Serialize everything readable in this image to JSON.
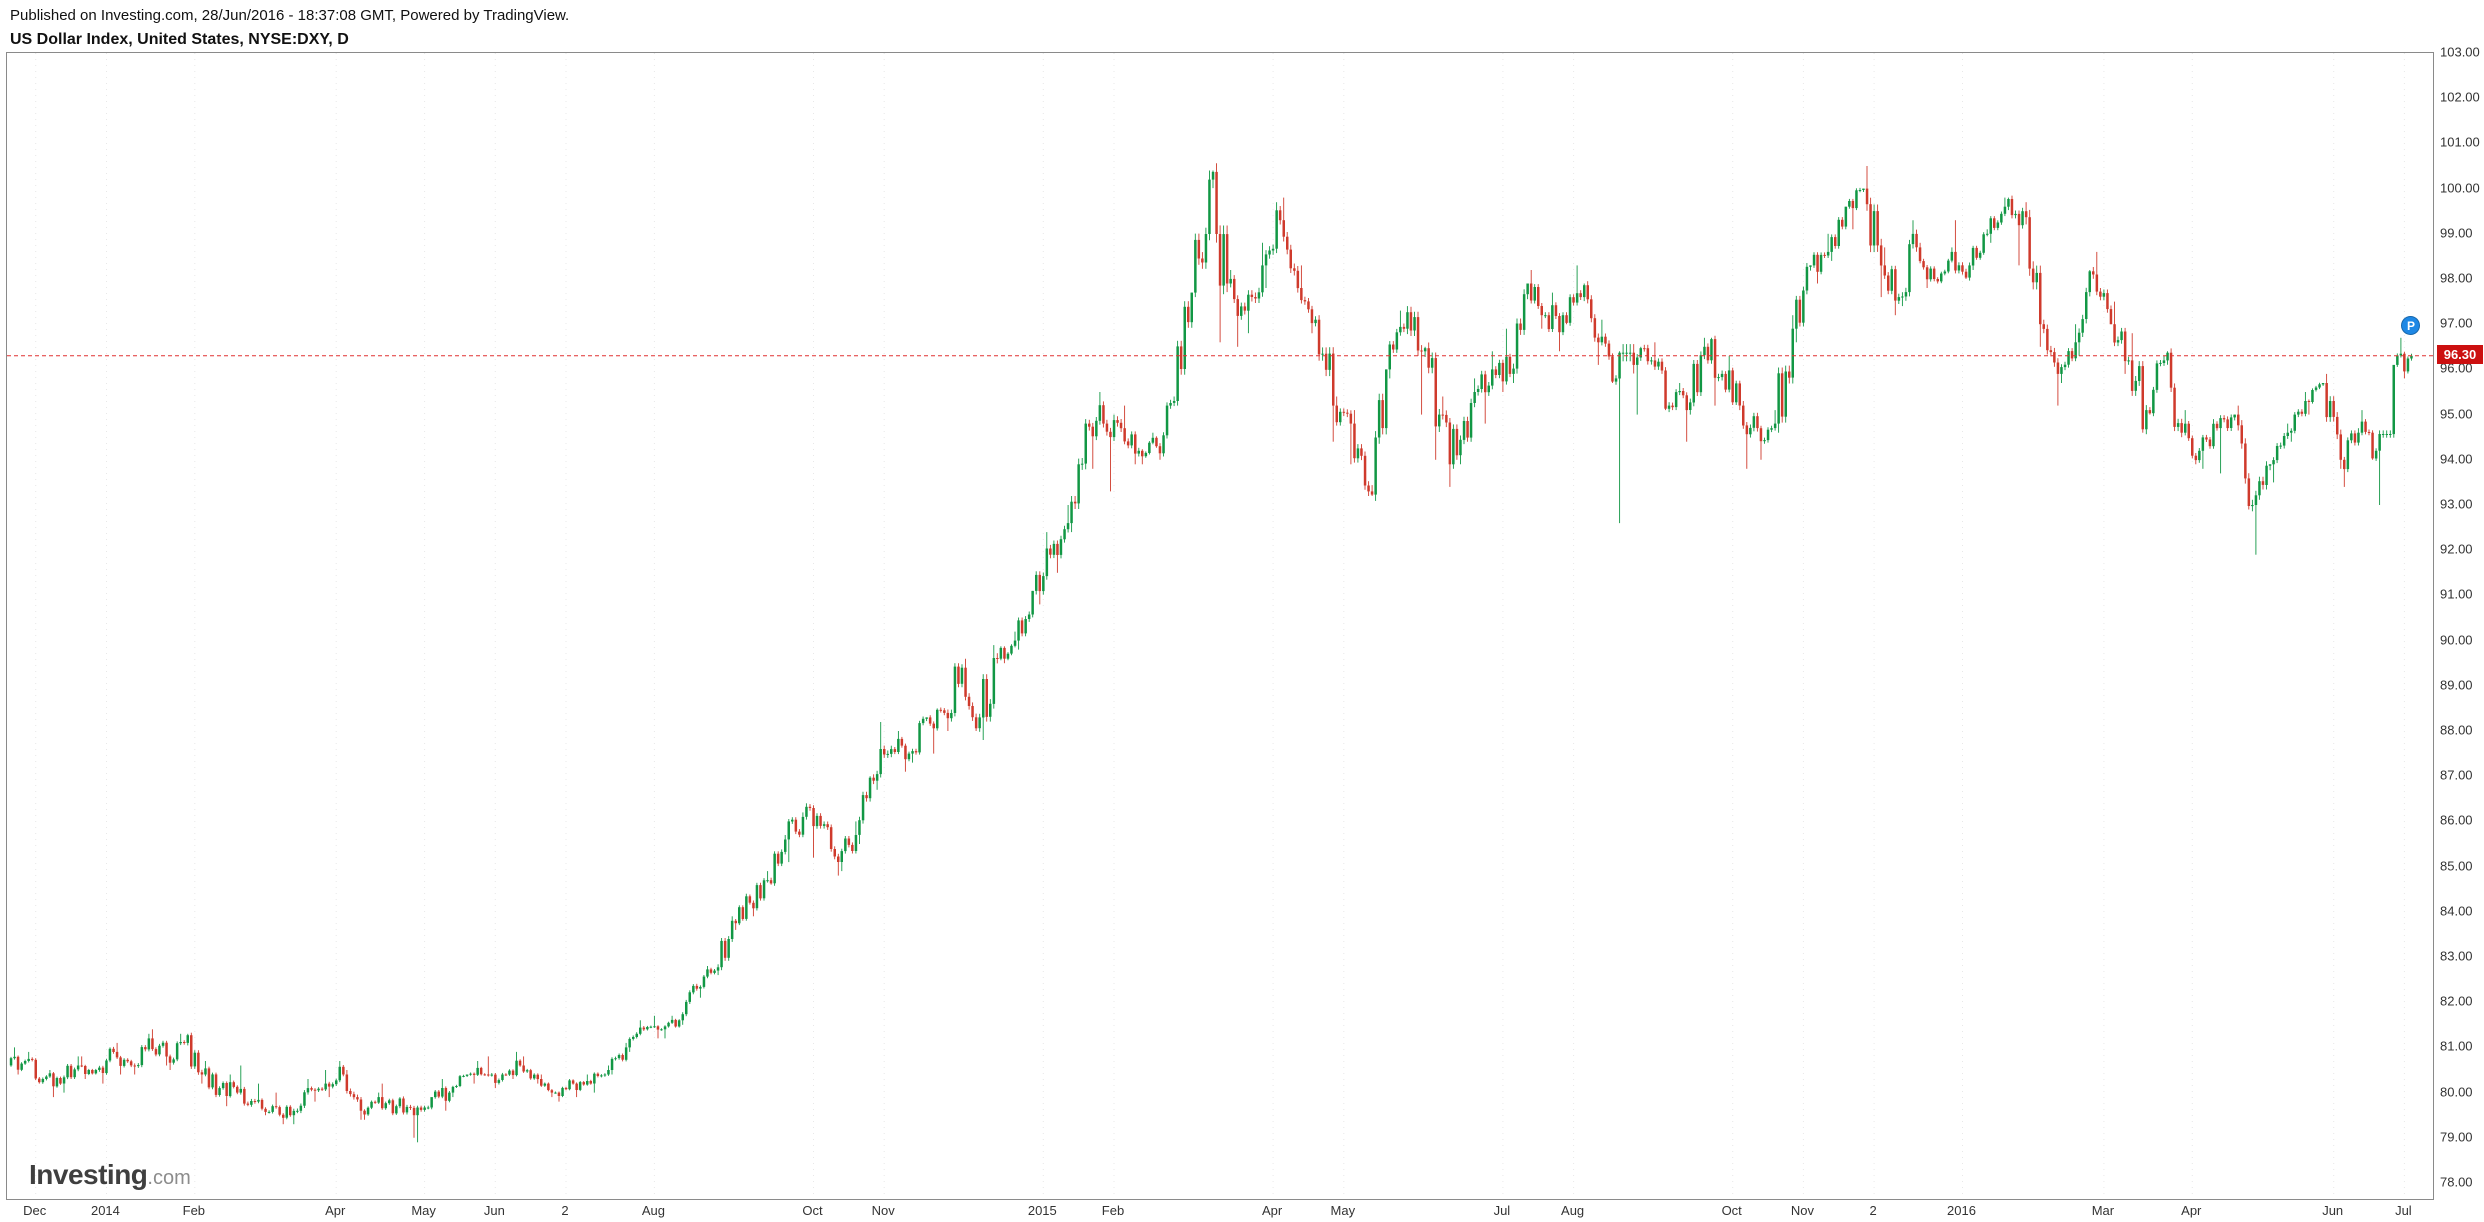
{
  "header": {
    "published_line": "Published on Investing.com, 28/Jun/2016 - 18:37:08 GMT, Powered by TradingView.",
    "instrument_line": "US Dollar Index, United States, NYSE:DXY, D"
  },
  "watermark": {
    "brand": "Investing",
    "suffix": ".com"
  },
  "price_marker": {
    "label": "96.30",
    "value": 96.3,
    "color": "#cc1010"
  },
  "publisher_marker": {
    "label": "P",
    "value": 96.95,
    "color": "#1e88e5"
  },
  "chart_data": {
    "type": "candlestick",
    "title": "US Dollar Index, United States, NYSE:DXY, D",
    "last_price": 96.3,
    "days_per_bar": 5,
    "colors": {
      "up": "#119744",
      "down": "#cf3a2c",
      "grid": "#e8e8e8",
      "price_line": "#e03030",
      "axis_text": "#333333",
      "frame": "#8a8a8a"
    },
    "y_axis": {
      "min": 78,
      "max": 103,
      "tick_step": 1,
      "tick_labels": [
        "103.00",
        "102.00",
        "101.00",
        "100.00",
        "99.00",
        "98.00",
        "97.00",
        "96.00",
        "95.00",
        "94.00",
        "93.00",
        "92.00",
        "91.00",
        "90.00",
        "89.00",
        "88.00",
        "87.00",
        "86.00",
        "85.00",
        "84.00",
        "83.00",
        "82.00",
        "81.00",
        "80.00",
        "79.00",
        "78.00"
      ]
    },
    "x_axis_labels": [
      {
        "label": "Dec",
        "week_index": 1
      },
      {
        "label": "2014",
        "week_index": 5
      },
      {
        "label": "Feb",
        "week_index": 10
      },
      {
        "label": "Apr",
        "week_index": 18
      },
      {
        "label": "May",
        "week_index": 23
      },
      {
        "label": "Jun",
        "week_index": 27
      },
      {
        "label": "2",
        "week_index": 31
      },
      {
        "label": "Aug",
        "week_index": 36
      },
      {
        "label": "Oct",
        "week_index": 45
      },
      {
        "label": "Nov",
        "week_index": 49
      },
      {
        "label": "2015",
        "week_index": 58
      },
      {
        "label": "Feb",
        "week_index": 62
      },
      {
        "label": "Apr",
        "week_index": 71
      },
      {
        "label": "May",
        "week_index": 75
      },
      {
        "label": "Jul",
        "week_index": 84
      },
      {
        "label": "Aug",
        "week_index": 88
      },
      {
        "label": "Oct",
        "week_index": 97
      },
      {
        "label": "Nov",
        "week_index": 101
      },
      {
        "label": "2",
        "week_index": 105
      },
      {
        "label": "2016",
        "week_index": 110
      },
      {
        "label": "Mar",
        "week_index": 118
      },
      {
        "label": "Apr",
        "week_index": 123
      },
      {
        "label": "Jun",
        "week_index": 131
      },
      {
        "label": "Jul",
        "week_index": 135
      }
    ],
    "ohlc_order": [
      "open",
      "high",
      "low",
      "close"
    ],
    "note": "Prices estimated from pixels; chart shows daily candles Dec 2013 - 28 Jun 2016, stored here at weekly resolution.",
    "ohlc_weekly": [
      [
        80.6,
        81.0,
        80.4,
        80.7
      ],
      [
        80.7,
        80.9,
        80.2,
        80.3
      ],
      [
        80.3,
        80.5,
        79.9,
        80.2
      ],
      [
        80.2,
        80.8,
        80.0,
        80.6
      ],
      [
        80.6,
        80.8,
        80.3,
        80.5
      ],
      [
        80.5,
        81.0,
        80.2,
        80.9
      ],
      [
        80.9,
        81.1,
        80.4,
        80.6
      ],
      [
        80.6,
        81.3,
        80.4,
        81.2
      ],
      [
        81.2,
        81.4,
        80.6,
        80.8
      ],
      [
        80.8,
        81.3,
        80.5,
        81.1
      ],
      [
        81.1,
        81.3,
        80.2,
        80.4
      ],
      [
        80.4,
        80.7,
        79.9,
        80.1
      ],
      [
        80.1,
        80.4,
        79.7,
        80.0
      ],
      [
        80.0,
        80.6,
        79.7,
        79.8
      ],
      [
        79.8,
        80.2,
        79.5,
        79.7
      ],
      [
        79.7,
        80.0,
        79.3,
        79.5
      ],
      [
        79.5,
        80.3,
        79.3,
        80.1
      ],
      [
        80.1,
        80.5,
        79.8,
        80.2
      ],
      [
        80.2,
        80.7,
        79.9,
        80.4
      ],
      [
        80.4,
        80.5,
        79.4,
        79.6
      ],
      [
        79.6,
        80.0,
        79.4,
        79.9
      ],
      [
        79.9,
        80.2,
        79.5,
        79.7
      ],
      [
        79.7,
        79.9,
        79.0,
        79.5
      ],
      [
        79.5,
        79.7,
        78.9,
        79.9
      ],
      [
        79.9,
        80.3,
        79.6,
        80.0
      ],
      [
        80.0,
        80.4,
        79.9,
        80.4
      ],
      [
        80.4,
        80.7,
        80.2,
        80.4
      ],
      [
        80.4,
        80.8,
        80.1,
        80.4
      ],
      [
        80.4,
        80.9,
        80.3,
        80.6
      ],
      [
        80.6,
        80.8,
        80.2,
        80.3
      ],
      [
        80.3,
        80.4,
        79.9,
        80.0
      ],
      [
        80.0,
        80.3,
        79.8,
        80.2
      ],
      [
        80.2,
        80.4,
        79.9,
        80.2
      ],
      [
        80.2,
        80.6,
        80.0,
        80.5
      ],
      [
        80.5,
        81.1,
        80.4,
        81.0
      ],
      [
        81.0,
        81.6,
        80.9,
        81.4
      ],
      [
        81.4,
        81.7,
        81.2,
        81.4
      ],
      [
        81.4,
        81.7,
        81.2,
        81.6
      ],
      [
        81.6,
        82.4,
        81.5,
        82.3
      ],
      [
        82.3,
        82.8,
        82.1,
        82.7
      ],
      [
        82.7,
        83.9,
        82.6,
        83.8
      ],
      [
        83.8,
        84.4,
        83.6,
        84.2
      ],
      [
        84.2,
        84.9,
        83.9,
        84.7
      ],
      [
        84.7,
        85.7,
        84.6,
        85.6
      ],
      [
        85.6,
        86.2,
        85.1,
        86.1
      ],
      [
        86.1,
        86.4,
        85.2,
        85.9
      ],
      [
        85.9,
        86.0,
        84.8,
        85.1
      ],
      [
        85.1,
        86.0,
        84.9,
        85.7
      ],
      [
        85.7,
        87.0,
        85.5,
        86.9
      ],
      [
        86.9,
        88.2,
        86.7,
        87.6
      ],
      [
        87.6,
        88.0,
        87.1,
        87.5
      ],
      [
        87.5,
        88.3,
        87.3,
        88.3
      ],
      [
        88.3,
        88.5,
        87.5,
        88.4
      ],
      [
        88.4,
        89.5,
        88.0,
        89.4
      ],
      [
        89.4,
        89.6,
        88.0,
        88.3
      ],
      [
        88.3,
        89.9,
        87.8,
        89.6
      ],
      [
        89.6,
        90.2,
        89.5,
        90.0
      ],
      [
        90.0,
        91.1,
        89.8,
        91.1
      ],
      [
        91.1,
        92.4,
        90.8,
        91.9
      ],
      [
        91.9,
        93.0,
        91.5,
        92.6
      ],
      [
        92.6,
        94.9,
        92.4,
        94.8
      ],
      [
        94.8,
        95.5,
        93.8,
        94.8
      ],
      [
        94.8,
        95.0,
        93.3,
        94.7
      ],
      [
        94.7,
        95.2,
        93.9,
        94.2
      ],
      [
        94.2,
        94.6,
        93.9,
        94.3
      ],
      [
        94.3,
        95.4,
        94.0,
        95.3
      ],
      [
        95.3,
        97.7,
        95.2,
        97.7
      ],
      [
        97.7,
        100.4,
        97.6,
        100.2
      ],
      [
        100.2,
        100.4,
        96.6,
        97.9
      ],
      [
        97.9,
        98.2,
        96.5,
        97.3
      ],
      [
        97.3,
        98.8,
        96.8,
        98.3
      ],
      [
        98.3,
        99.7,
        97.8,
        99.3
      ],
      [
        99.3,
        99.8,
        97.7,
        97.8
      ],
      [
        97.8,
        98.3,
        96.8,
        97.1
      ],
      [
        97.1,
        97.2,
        94.4,
        95.2
      ],
      [
        95.2,
        95.4,
        93.9,
        94.8
      ],
      [
        94.8,
        95.1,
        93.2,
        93.3
      ],
      [
        93.3,
        96.0,
        93.2,
        96.0
      ],
      [
        96.0,
        97.3,
        95.8,
        96.9
      ],
      [
        96.9,
        97.4,
        95.0,
        96.4
      ],
      [
        96.4,
        96.5,
        94.0,
        95.0
      ],
      [
        95.0,
        95.4,
        93.4,
        94.1
      ],
      [
        94.1,
        95.8,
        93.9,
        95.5
      ],
      [
        95.5,
        96.4,
        94.8,
        96.0
      ],
      [
        96.0,
        96.9,
        95.5,
        95.9
      ],
      [
        95.9,
        97.9,
        95.7,
        97.9
      ],
      [
        97.9,
        98.2,
        96.9,
        97.2
      ],
      [
        97.2,
        97.7,
        96.4,
        97.2
      ],
      [
        97.2,
        98.3,
        97.0,
        97.6
      ],
      [
        97.6,
        97.9,
        96.1,
        96.6
      ],
      [
        96.6,
        97.1,
        95.7,
        95.8
      ],
      [
        95.8,
        96.4,
        92.6,
        96.1
      ],
      [
        96.1,
        96.5,
        95.0,
        96.2
      ],
      [
        96.2,
        96.6,
        95.1,
        95.2
      ],
      [
        95.2,
        95.7,
        94.4,
        95.1
      ],
      [
        95.1,
        96.7,
        95.0,
        96.5
      ],
      [
        96.5,
        96.7,
        95.2,
        95.9
      ],
      [
        95.9,
        96.3,
        95.1,
        95.2
      ],
      [
        95.2,
        95.3,
        93.8,
        94.7
      ],
      [
        94.7,
        95.1,
        94.0,
        94.8
      ],
      [
        94.8,
        97.2,
        94.6,
        96.9
      ],
      [
        96.9,
        98.3,
        96.6,
        98.3
      ],
      [
        98.3,
        99.0,
        97.9,
        98.6
      ],
      [
        98.6,
        99.6,
        98.4,
        99.6
      ],
      [
        99.6,
        100.0,
        99.1,
        100.0
      ],
      [
        100.0,
        100.5,
        97.6,
        98.3
      ],
      [
        98.3,
        98.7,
        97.2,
        97.6
      ],
      [
        97.6,
        99.3,
        97.4,
        98.7
      ],
      [
        98.7,
        98.8,
        97.8,
        98.0
      ],
      [
        98.0,
        98.7,
        97.9,
        98.6
      ],
      [
        98.6,
        99.3,
        98.0,
        98.3
      ],
      [
        98.3,
        99.1,
        98.2,
        99.0
      ],
      [
        99.0,
        99.8,
        98.8,
        99.6
      ],
      [
        99.6,
        99.8,
        98.3,
        99.5
      ],
      [
        99.5,
        99.7,
        96.5,
        97.0
      ],
      [
        97.0,
        97.1,
        95.2,
        95.9
      ],
      [
        95.9,
        97.0,
        95.7,
        96.6
      ],
      [
        96.6,
        98.2,
        96.3,
        98.1
      ],
      [
        98.1,
        98.6,
        97.0,
        97.0
      ],
      [
        97.0,
        97.5,
        95.9,
        96.2
      ],
      [
        96.2,
        96.8,
        94.6,
        95.1
      ],
      [
        95.1,
        96.3,
        95.0,
        96.2
      ],
      [
        96.2,
        96.4,
        94.5,
        94.6
      ],
      [
        94.6,
        95.1,
        93.9,
        94.2
      ],
      [
        94.2,
        94.9,
        93.8,
        94.7
      ],
      [
        94.7,
        95.0,
        93.7,
        95.0
      ],
      [
        95.0,
        95.2,
        92.9,
        93.0
      ],
      [
        93.0,
        93.9,
        91.9,
        93.9
      ],
      [
        93.9,
        94.8,
        93.5,
        94.6
      ],
      [
        94.6,
        95.5,
        94.4,
        95.3
      ],
      [
        95.3,
        95.7,
        95.0,
        95.7
      ],
      [
        95.7,
        95.9,
        93.8,
        94.0
      ],
      [
        94.0,
        94.7,
        93.4,
        94.6
      ],
      [
        94.6,
        95.1,
        94.0,
        94.2
      ],
      [
        94.2,
        94.6,
        93.0,
        96.1
      ],
      [
        96.1,
        96.7,
        95.8,
        96.3
      ]
    ]
  }
}
